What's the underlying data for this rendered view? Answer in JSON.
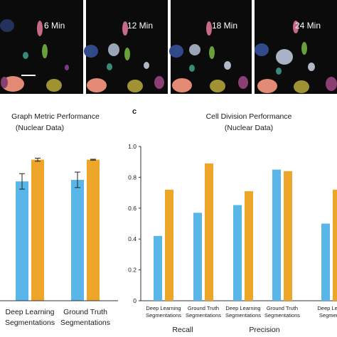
{
  "microscopy": {
    "time_labels": [
      "6 Min",
      "12 Min",
      "18 Min",
      "24 Min"
    ]
  },
  "panel_b": {
    "title_line1": "Graph Metric Performance",
    "title_line2": "(Nuclear Data)"
  },
  "panel_c": {
    "letter": "c",
    "title_line1": "Cell Division Performance",
    "title_line2": "(Nuclear Data)"
  },
  "colors": {
    "blue": "#58b6e8",
    "orange": "#eea62a",
    "dark_bg": "#0b0b0b"
  },
  "chart_data": [
    {
      "type": "bar",
      "categories": [
        "Deep Learning Segmentations",
        "Ground Truth Segmentations"
      ],
      "category_labels": [
        [
          "Deep Learning",
          "Segmentations"
        ],
        [
          "Ground Truth",
          "Segmentations"
        ]
      ],
      "series": [
        {
          "values": [
            0.77,
            0.78
          ],
          "errors": [
            0.05,
            0.05
          ],
          "color": "#58b6e8"
        },
        {
          "values": [
            0.91,
            0.91
          ],
          "errors": [
            0.01,
            0.003
          ],
          "color": "#eea62a"
        }
      ],
      "title": "Graph Metric Performance (Nuclear Data)",
      "ylim": [
        0,
        1.0
      ]
    },
    {
      "type": "bar",
      "categories": [
        "Deep Learning Segmentations",
        "Ground Truth Segmentations",
        "Deep Learning Segmentations",
        "Ground Truth Segmentations",
        "Deep Learning Segmentations"
      ],
      "category_labels": [
        [
          "Deep Learning",
          "Segmentations"
        ],
        [
          "Ground Truth",
          "Segmentations"
        ],
        [
          "Deep Learning",
          "Segmentations"
        ],
        [
          "Ground Truth",
          "Segmentations"
        ],
        [
          "Deep Learn",
          "Segmenta"
        ]
      ],
      "groups": [
        "Recall",
        "Precision"
      ],
      "series": [
        {
          "values": [
            0.42,
            0.57,
            0.62,
            0.85,
            0.5
          ],
          "color": "#58b6e8"
        },
        {
          "values": [
            0.72,
            0.89,
            0.71,
            0.84,
            0.72
          ],
          "color": "#eea62a"
        }
      ],
      "title": "Cell Division Performance (Nuclear Data)",
      "yticks": [
        "1.0",
        "0.8",
        "0.6",
        "0.4",
        "0.2",
        "0"
      ],
      "ylim": [
        0,
        1.0
      ]
    }
  ]
}
